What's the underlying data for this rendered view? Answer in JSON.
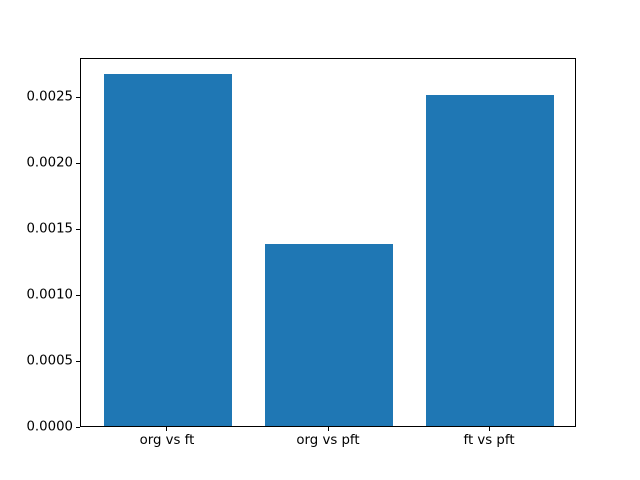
{
  "chart_data": {
    "type": "bar",
    "title": "",
    "xlabel": "",
    "ylabel": "",
    "categories": [
      "org vs ft",
      "org vs pft",
      "ft vs pft"
    ],
    "values": [
      0.00267,
      0.00138,
      0.00251
    ],
    "bar_color": "#1f77b4",
    "bar_width_data_units": 0.8,
    "xlim": [
      -0.54,
      2.54
    ],
    "ylim": [
      0,
      0.0028
    ],
    "ytick_values": [
      0.0,
      0.0005,
      0.001,
      0.0015,
      0.002,
      0.0025
    ],
    "ytick_labels": [
      "0.0000",
      "0.0005",
      "0.0010",
      "0.0015",
      "0.0020",
      "0.0025"
    ],
    "grid": false,
    "legend": null,
    "background_color": "#ffffff",
    "spine_color": "#000000"
  }
}
